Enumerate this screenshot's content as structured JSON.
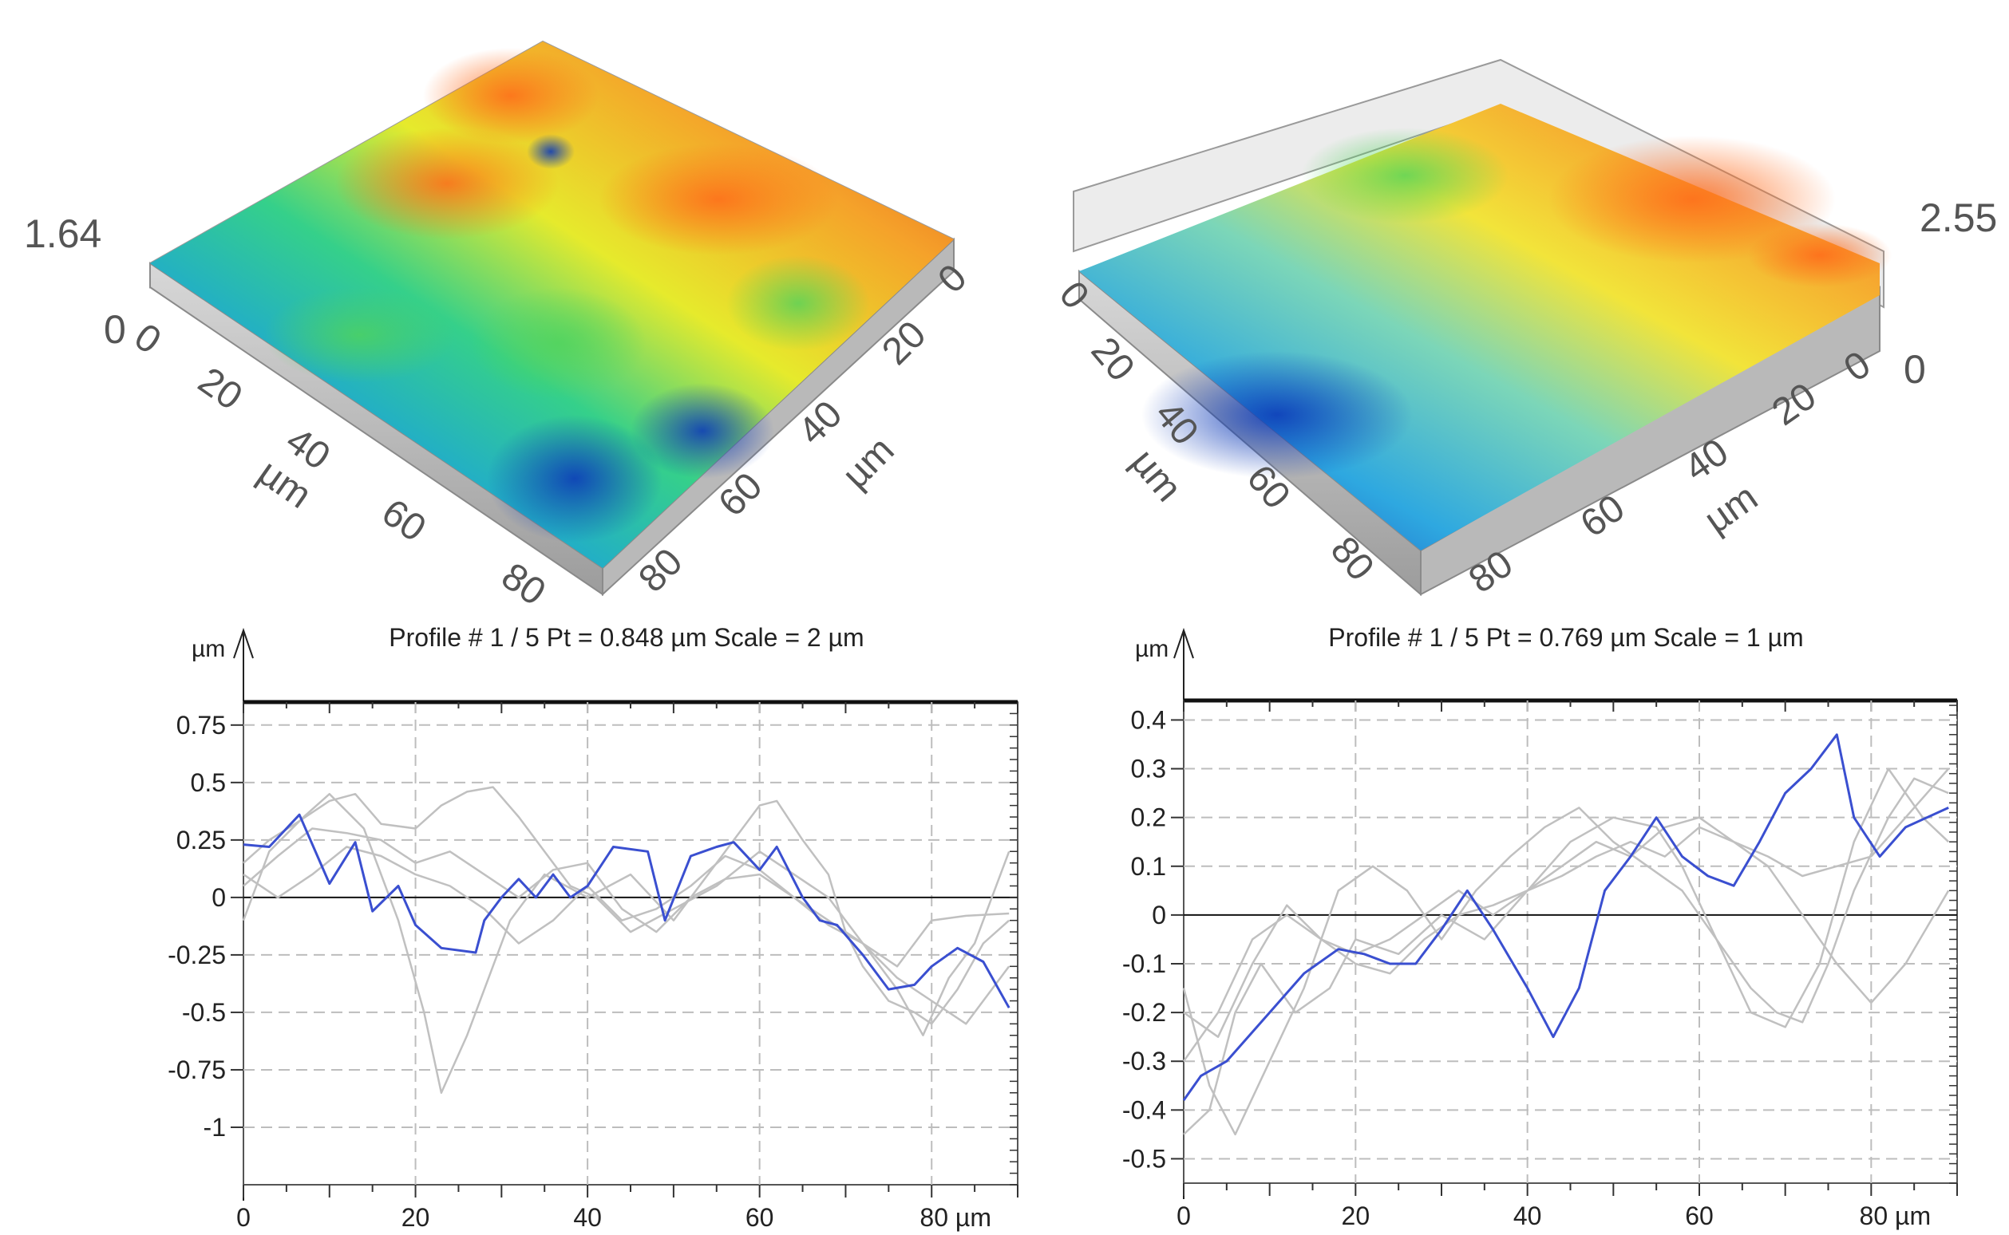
{
  "surfaces": [
    {
      "z_max_label": "1.64",
      "z_min_label": "0",
      "left_axis": {
        "ticks": [
          "0",
          "20",
          "40",
          "60",
          "80"
        ],
        "unit": "µm"
      },
      "right_axis": {
        "ticks": [
          "0",
          "20",
          "40",
          "60",
          "80"
        ],
        "unit": "µm"
      }
    },
    {
      "z_max_label": "2.55",
      "z_min_label": "0",
      "left_axis": {
        "ticks": [
          "0",
          "20",
          "40",
          "60",
          "80"
        ],
        "unit": "µm"
      },
      "right_axis": {
        "ticks": [
          "0",
          "20",
          "40",
          "60",
          "80"
        ],
        "unit": "µm"
      }
    }
  ],
  "chart_data": [
    {
      "type": "line",
      "title": "Profile # 1 / 5 Pt = 0.848 µm  Scale = 2 µm",
      "ylabel": "µm",
      "xlim": [
        0,
        90
      ],
      "ylim": [
        -1.25,
        0.85
      ],
      "x_ticks": [
        "0",
        "20",
        "40",
        "60",
        "80 µm"
      ],
      "y_ticks": [
        {
          "v": 0.75,
          "t": "0.75"
        },
        {
          "v": 0.5,
          "t": "0.5"
        },
        {
          "v": 0.25,
          "t": "0.25"
        },
        {
          "v": 0,
          "t": "0"
        },
        {
          "v": -0.25,
          "t": "-0.25"
        },
        {
          "v": -0.5,
          "t": "-0.5"
        },
        {
          "v": -0.75,
          "t": "-0.75"
        },
        {
          "v": -1,
          "t": "-1"
        }
      ],
      "grid": true,
      "series": [
        {
          "color": "#3a4fd0",
          "x": [
            0,
            3,
            6.5,
            10,
            13,
            15,
            18,
            20,
            23,
            27,
            28,
            30,
            32,
            34,
            36,
            38,
            40,
            43,
            47,
            49,
            52,
            55,
            57,
            60,
            62,
            65,
            67,
            69,
            72,
            75,
            78,
            80,
            83,
            86,
            89
          ],
          "y": [
            0.23,
            0.22,
            0.36,
            0.06,
            0.24,
            -0.06,
            0.05,
            -0.12,
            -0.22,
            -0.24,
            -0.1,
            0.0,
            0.08,
            0.0,
            0.1,
            0.0,
            0.05,
            0.22,
            0.2,
            -0.1,
            0.18,
            0.22,
            0.24,
            0.12,
            0.22,
            0.0,
            -0.1,
            -0.12,
            -0.25,
            -0.4,
            -0.38,
            -0.3,
            -0.22,
            -0.28,
            -0.48
          ]
        },
        {
          "color": "#c0c0c0",
          "x": [
            0,
            3,
            7,
            10,
            14,
            18,
            21,
            23,
            26,
            28,
            31,
            35,
            40,
            45,
            50,
            55,
            58,
            60,
            62,
            65,
            68,
            70,
            72,
            75,
            78,
            80,
            83,
            86,
            89
          ],
          "y": [
            -0.1,
            0.2,
            0.35,
            0.45,
            0.3,
            -0.1,
            -0.5,
            -0.85,
            -0.6,
            -0.4,
            -0.1,
            0.1,
            0.0,
            0.1,
            -0.1,
            0.15,
            0.3,
            0.4,
            0.42,
            0.25,
            0.1,
            -0.15,
            -0.3,
            -0.45,
            -0.5,
            -0.55,
            -0.4,
            -0.2,
            -0.1
          ]
        },
        {
          "color": "#c0c0c0",
          "x": [
            0,
            3,
            6,
            10,
            13,
            16,
            20,
            23,
            26,
            29,
            32,
            35,
            38,
            41,
            45,
            50,
            55,
            60,
            64,
            68,
            70,
            73,
            76,
            79,
            82,
            85,
            89
          ],
          "y": [
            0.15,
            0.25,
            0.32,
            0.42,
            0.45,
            0.32,
            0.3,
            0.4,
            0.46,
            0.48,
            0.35,
            0.2,
            0.05,
            0.0,
            -0.15,
            -0.05,
            0.05,
            0.2,
            0.1,
            0.0,
            -0.1,
            -0.25,
            -0.4,
            -0.6,
            -0.35,
            -0.2,
            0.2
          ]
        },
        {
          "color": "#c0c0c0",
          "x": [
            0,
            4,
            8,
            12,
            16,
            20,
            24,
            28,
            32,
            36,
            40,
            44,
            48,
            52,
            56,
            60,
            64,
            68,
            72,
            76,
            80,
            84,
            89
          ],
          "y": [
            0.05,
            0.18,
            0.3,
            0.28,
            0.25,
            0.15,
            0.2,
            0.1,
            0.0,
            0.12,
            0.15,
            -0.05,
            -0.15,
            0.0,
            0.08,
            0.1,
            0.0,
            -0.1,
            -0.2,
            -0.35,
            -0.45,
            -0.55,
            -0.3
          ]
        },
        {
          "color": "#c0c0c0",
          "x": [
            0,
            4,
            8,
            12,
            16,
            20,
            24,
            28,
            32,
            36,
            40,
            44,
            48,
            52,
            56,
            60,
            64,
            68,
            72,
            76,
            80,
            84,
            89
          ],
          "y": [
            0.1,
            0.0,
            0.1,
            0.22,
            0.18,
            0.1,
            0.05,
            -0.05,
            -0.2,
            -0.1,
            0.05,
            -0.1,
            -0.05,
            0.05,
            0.18,
            0.12,
            0.0,
            -0.12,
            -0.2,
            -0.3,
            -0.1,
            -0.08,
            -0.07
          ]
        }
      ]
    },
    {
      "type": "line",
      "title": "Profile # 1 / 5 Pt = 0.769 µm  Scale = 1 µm",
      "ylabel": "µm",
      "xlim": [
        0,
        90
      ],
      "ylim": [
        -0.55,
        0.44
      ],
      "x_ticks": [
        "0",
        "20",
        "40",
        "60",
        "80 µm"
      ],
      "y_ticks": [
        {
          "v": 0.4,
          "t": "0.4"
        },
        {
          "v": 0.3,
          "t": "0.3"
        },
        {
          "v": 0.2,
          "t": "0.2"
        },
        {
          "v": 0.1,
          "t": "0.1"
        },
        {
          "v": 0,
          "t": "0"
        },
        {
          "v": -0.1,
          "t": "-0.1"
        },
        {
          "v": -0.2,
          "t": "-0.2"
        },
        {
          "v": -0.3,
          "t": "-0.3"
        },
        {
          "v": -0.4,
          "t": "-0.4"
        },
        {
          "v": -0.5,
          "t": "-0.5"
        }
      ],
      "grid": true,
      "series": [
        {
          "color": "#3a4fd0",
          "x": [
            0,
            2,
            5,
            10,
            14,
            18,
            21,
            24,
            27,
            30,
            33,
            36,
            40,
            43,
            46,
            49,
            52,
            55,
            58,
            61,
            64,
            67,
            70,
            73,
            76,
            78,
            81,
            84,
            89
          ],
          "y": [
            -0.38,
            -0.33,
            -0.3,
            -0.2,
            -0.12,
            -0.07,
            -0.08,
            -0.1,
            -0.1,
            -0.03,
            0.05,
            -0.03,
            -0.15,
            -0.25,
            -0.15,
            0.05,
            0.12,
            0.2,
            0.12,
            0.08,
            0.06,
            0.15,
            0.25,
            0.3,
            0.37,
            0.2,
            0.12,
            0.18,
            0.22
          ]
        },
        {
          "color": "#c0c0c0",
          "x": [
            0,
            3,
            6,
            9,
            13,
            17,
            20,
            25,
            30,
            35,
            40,
            45,
            50,
            55,
            58,
            62,
            66,
            69,
            72,
            75,
            78,
            82,
            85,
            89
          ],
          "y": [
            -0.45,
            -0.4,
            -0.2,
            -0.1,
            -0.2,
            -0.15,
            -0.05,
            -0.08,
            0.0,
            -0.05,
            0.05,
            0.15,
            0.2,
            0.18,
            0.1,
            -0.05,
            -0.15,
            -0.2,
            -0.22,
            -0.1,
            0.05,
            0.2,
            0.28,
            0.25
          ]
        },
        {
          "color": "#c0c0c0",
          "x": [
            0,
            3,
            6,
            10,
            14,
            18,
            22,
            26,
            30,
            34,
            38,
            42,
            46,
            50,
            54,
            58,
            62,
            66,
            70,
            74,
            78,
            82,
            86,
            89
          ],
          "y": [
            -0.15,
            -0.35,
            -0.45,
            -0.3,
            -0.15,
            0.05,
            0.1,
            0.05,
            -0.05,
            0.05,
            0.12,
            0.18,
            0.22,
            0.15,
            0.1,
            0.05,
            -0.05,
            -0.2,
            -0.23,
            -0.1,
            0.15,
            0.3,
            0.2,
            0.15
          ]
        },
        {
          "color": "#c0c0c0",
          "x": [
            0,
            4,
            8,
            12,
            16,
            20,
            24,
            28,
            32,
            36,
            40,
            44,
            48,
            52,
            56,
            60,
            64,
            68,
            72,
            76,
            80,
            84,
            89
          ],
          "y": [
            -0.2,
            -0.25,
            -0.1,
            0.02,
            -0.05,
            -0.08,
            -0.05,
            0.0,
            0.05,
            0.0,
            0.05,
            0.1,
            0.15,
            0.12,
            0.18,
            0.2,
            0.15,
            0.1,
            0.0,
            -0.1,
            -0.18,
            -0.1,
            0.05
          ]
        },
        {
          "color": "#c0c0c0",
          "x": [
            0,
            4,
            8,
            12,
            16,
            20,
            24,
            28,
            32,
            36,
            40,
            44,
            48,
            52,
            56,
            60,
            64,
            68,
            72,
            76,
            80,
            84,
            89
          ],
          "y": [
            -0.3,
            -0.2,
            -0.05,
            0.0,
            -0.05,
            -0.1,
            -0.12,
            -0.05,
            0.0,
            0.02,
            0.05,
            0.08,
            0.12,
            0.15,
            0.12,
            0.18,
            0.15,
            0.12,
            0.08,
            0.1,
            0.12,
            0.2,
            0.3
          ]
        }
      ]
    }
  ]
}
